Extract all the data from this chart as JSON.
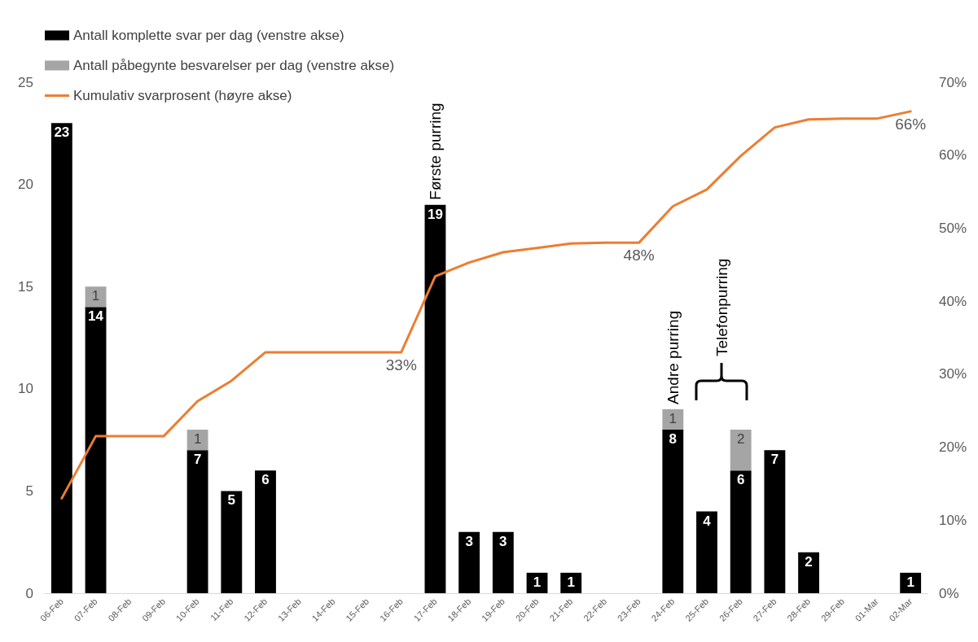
{
  "chart_data": {
    "type": "bar",
    "stacked": true,
    "categories": [
      "06-Feb",
      "07-Feb",
      "08-Feb",
      "09-Feb",
      "10-Feb",
      "11-Feb",
      "12-Feb",
      "13-Feb",
      "14-Feb",
      "15-Feb",
      "16-Feb",
      "17-Feb",
      "18-Feb",
      "19-Feb",
      "20-Feb",
      "21-Feb",
      "22-Feb",
      "23-Feb",
      "24-Feb",
      "25-Feb",
      "26-Feb",
      "27-Feb",
      "28-Feb",
      "29-Feb",
      "01-Mar",
      "02-Mar"
    ],
    "series": [
      {
        "name": "Antall komplette svar per dag (venstre akse)",
        "color": "#000000",
        "values": [
          23,
          14,
          0,
          0,
          7,
          5,
          6,
          0,
          0,
          0,
          0,
          19,
          3,
          3,
          1,
          1,
          0,
          0,
          8,
          4,
          6,
          7,
          2,
          0,
          0,
          1
        ],
        "value_labels": [
          "23",
          "14",
          null,
          null,
          "7",
          "5",
          "6",
          null,
          null,
          null,
          null,
          "19",
          "3",
          "3",
          "1",
          "1",
          null,
          null,
          "8",
          "4",
          "6",
          "7",
          "2",
          null,
          null,
          "1"
        ]
      },
      {
        "name": "Antall påbegynte besvarelser per dag (venstre akse)",
        "color": "#a5a5a5",
        "values": [
          0,
          1,
          0,
          0,
          1,
          0,
          0,
          0,
          0,
          0,
          0,
          0,
          0,
          0,
          0,
          0,
          0,
          0,
          1,
          0,
          2,
          0,
          0,
          0,
          0,
          0
        ],
        "value_labels": [
          null,
          "1",
          null,
          null,
          "1",
          null,
          null,
          null,
          null,
          null,
          null,
          null,
          null,
          null,
          null,
          null,
          null,
          null,
          "1",
          null,
          "2",
          null,
          null,
          null,
          null,
          null
        ]
      },
      {
        "name": "Kumulativ svarprosent (høyre akse)",
        "type": "line",
        "axis": "y2",
        "color": "#ed7d31",
        "marker": "none",
        "values": [
          13,
          21.5,
          21.5,
          21.5,
          26.3,
          29.1,
          33,
          33,
          33,
          33,
          33,
          43.4,
          45.3,
          46.7,
          47.3,
          47.9,
          48,
          48,
          53,
          55.3,
          59.9,
          63.8,
          64.9,
          65,
          65,
          66
        ],
        "value_labels": [
          null,
          null,
          null,
          null,
          null,
          null,
          null,
          null,
          null,
          null,
          "33%",
          null,
          null,
          null,
          null,
          null,
          null,
          "48%",
          null,
          null,
          null,
          null,
          null,
          null,
          null,
          "66%"
        ]
      }
    ],
    "ylim": [
      0,
      25
    ],
    "yticks": [
      0,
      5,
      10,
      15,
      20,
      25
    ],
    "y2lim": [
      0,
      70
    ],
    "y2ticks": [
      {
        "value": 0,
        "label": "0%"
      },
      {
        "value": 10,
        "label": "10%"
      },
      {
        "value": 20,
        "label": "20%"
      },
      {
        "value": 30,
        "label": "30%"
      },
      {
        "value": 40,
        "label": "40%"
      },
      {
        "value": 50,
        "label": "50%"
      },
      {
        "value": 60,
        "label": "60%"
      },
      {
        "value": 70,
        "label": "70%"
      }
    ],
    "grid": false,
    "legend": "top left",
    "annotations": [
      {
        "text": "Første purring",
        "x": "17-Feb",
        "y": 19
      },
      {
        "text": "Andre purring",
        "x": "24-Feb",
        "y": 9
      },
      "Telefonpurring"
    ]
  }
}
